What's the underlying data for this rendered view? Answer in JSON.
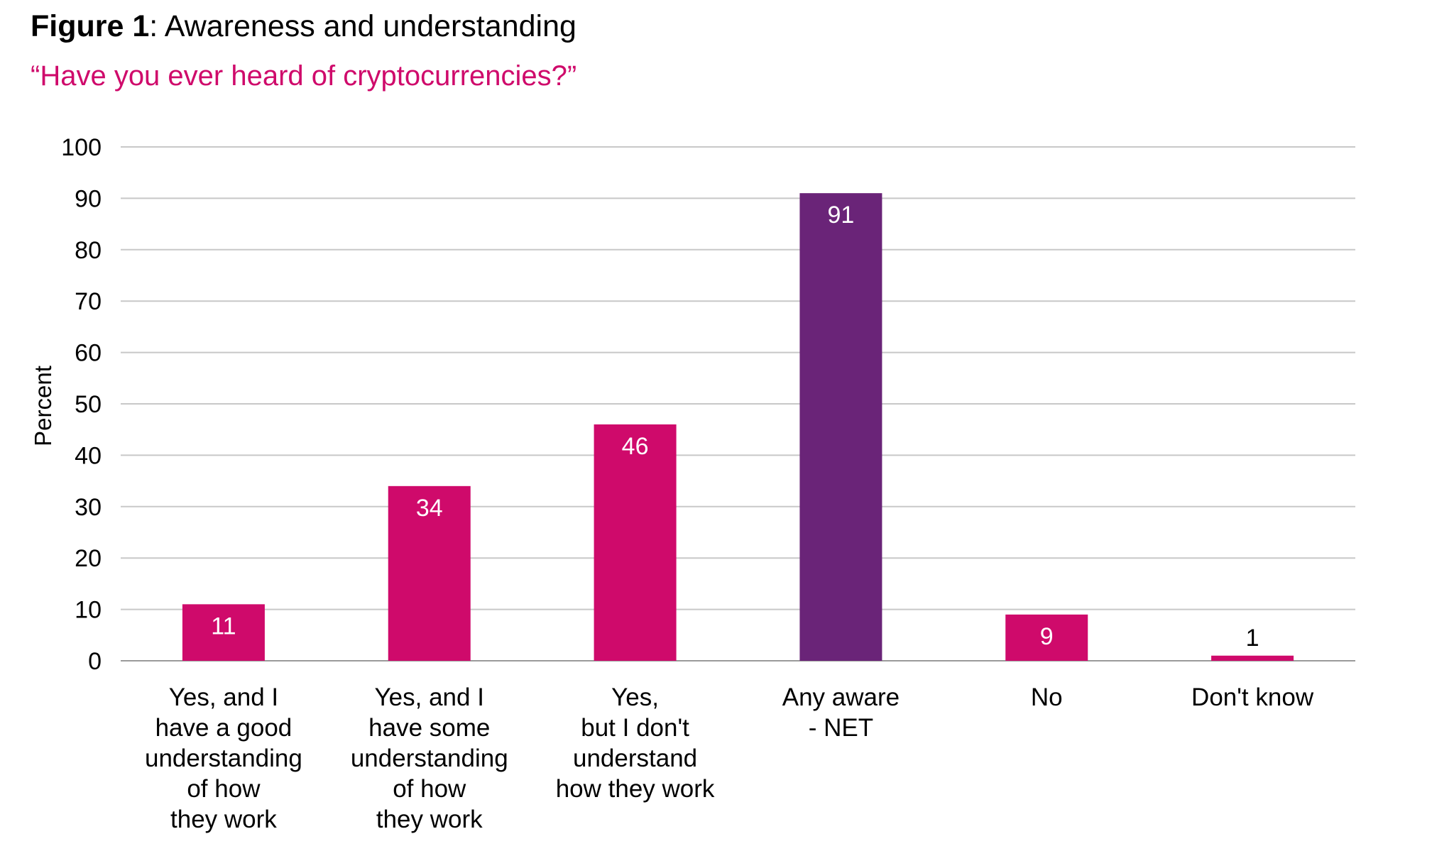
{
  "figure": {
    "label": "Figure 1",
    "separator": ": ",
    "title": "Awareness and understanding",
    "subtitle": "“Have you ever heard of cryptocurrencies?”"
  },
  "colors": {
    "primary_bar": "#cf0a6b",
    "net_bar": "#6a2478",
    "subtitle": "#cf0a6b",
    "gridline": "#c8c8c8",
    "baseline": "#9a9a9a",
    "label_inside": "#ffffff",
    "label_outside": "#000000",
    "text": "#000000"
  },
  "chart_data": {
    "type": "bar",
    "ylabel": "Percent",
    "xlabel": "",
    "ylim": [
      0,
      100
    ],
    "yticks": [
      0,
      10,
      20,
      30,
      40,
      50,
      60,
      70,
      80,
      90,
      100
    ],
    "grid": true,
    "categories": [
      "Yes, and I have a good understanding of how they work",
      "Yes, and I have some understanding of how they work",
      "Yes, but I don't understand how they work",
      "Any aware - NET",
      "No",
      "Don't know"
    ],
    "category_lines": [
      [
        "Yes, and I",
        "have a good",
        "understanding",
        "of how",
        "they work"
      ],
      [
        "Yes, and I",
        "have some",
        "understanding",
        "of how",
        "they work"
      ],
      [
        "Yes,",
        "but I don't",
        "understand",
        "how they work"
      ],
      [
        "Any aware",
        "- NET"
      ],
      [
        "No"
      ],
      [
        "Don't know"
      ]
    ],
    "values": [
      11,
      34,
      46,
      91,
      9,
      1
    ],
    "data_labels": [
      "11",
      "34",
      "46",
      "91",
      "9",
      "1"
    ],
    "highlight_index": 3
  }
}
